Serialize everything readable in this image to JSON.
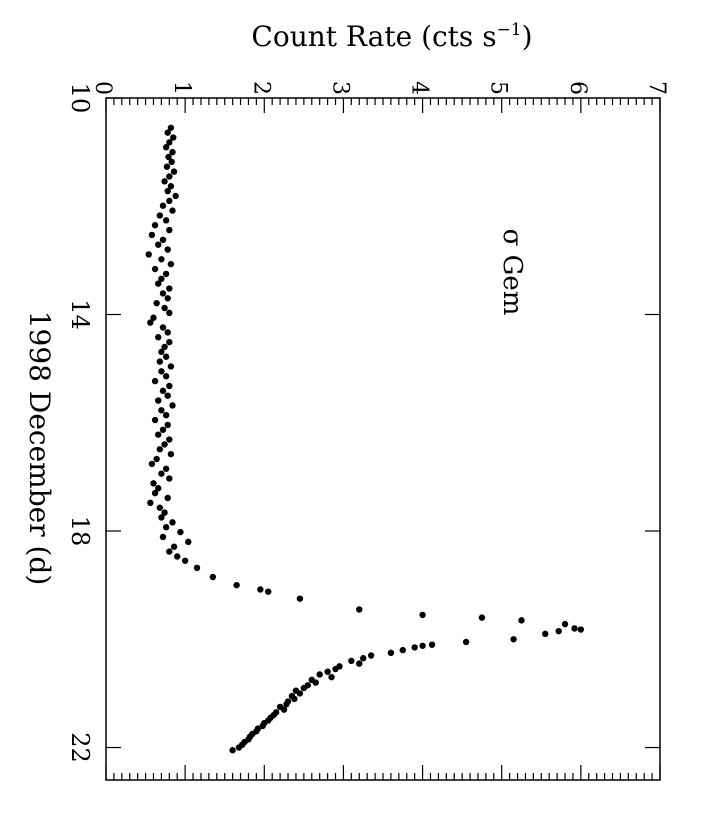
{
  "chart_data": {
    "type": "scatter",
    "orientation": "rotated-90-clockwise",
    "annotation": "σ Gem",
    "xlabel": "1998 December (d)",
    "ylabel_main": "Count Rate (cts s",
    "ylabel_sup": "−1",
    "ylabel_close": ")",
    "xlim": [
      10,
      22.6
    ],
    "ylim": [
      0,
      7
    ],
    "x_ticks": [
      10,
      14,
      18,
      22
    ],
    "x_tick_labels": [
      "10",
      "14",
      "18",
      "22"
    ],
    "y_ticks": [
      0,
      1,
      2,
      3,
      4,
      5,
      6,
      7
    ],
    "y_tick_labels": [
      "0",
      "1",
      "2",
      "3",
      "4",
      "5",
      "6",
      "7"
    ],
    "grid": false,
    "legend": "none",
    "marker_color": "#000000",
    "series": [
      {
        "x": [
          10.55,
          10.64,
          10.73,
          10.82,
          10.91,
          11.0,
          11.09,
          11.18,
          11.27,
          11.36,
          11.45,
          11.54,
          11.63,
          11.72,
          11.81,
          11.9,
          11.99,
          12.08,
          12.17,
          12.26,
          12.35,
          12.44,
          12.53,
          12.62,
          12.71,
          12.8,
          12.89,
          12.98,
          13.07,
          13.16,
          13.25,
          13.34,
          13.43,
          13.52,
          13.61,
          13.7,
          13.79,
          13.88,
          13.97,
          14.06,
          14.15,
          14.24,
          14.33,
          14.42,
          14.51,
          14.6,
          14.69,
          14.78,
          14.87,
          14.96,
          15.05,
          15.14,
          15.23,
          15.32,
          15.41,
          15.5,
          15.59,
          15.68,
          15.77,
          15.86,
          15.95,
          16.04,
          16.13,
          16.22,
          16.31,
          16.4,
          16.49,
          16.58,
          16.67,
          16.76,
          16.85,
          16.94,
          17.03,
          17.12,
          17.21,
          17.3,
          17.39,
          17.48,
          17.57,
          17.66,
          17.75,
          17.84,
          17.93,
          18.02,
          18.11,
          18.2,
          18.29,
          18.38,
          18.47,
          18.55,
          18.68,
          18.85,
          19.0,
          19.08,
          19.12,
          19.25,
          19.45,
          19.55,
          19.6,
          19.65,
          19.72,
          19.8,
          19.82,
          19.85,
          19.9,
          20.0,
          20.05,
          20.1,
          20.12,
          20.15,
          20.2,
          20.25,
          20.3,
          20.35,
          20.4,
          20.45,
          20.5,
          20.55,
          20.6,
          20.65,
          20.7,
          20.75,
          20.8,
          20.85,
          20.9,
          20.95,
          21.0,
          21.05,
          21.1,
          21.15,
          21.2,
          21.25,
          21.3,
          21.35,
          21.4,
          21.45,
          21.5,
          21.55,
          21.6,
          21.65,
          21.7,
          21.75,
          21.8,
          21.85,
          21.9,
          21.95,
          22.0,
          22.05
        ],
        "y": [
          0.82,
          0.78,
          0.85,
          0.8,
          0.76,
          0.84,
          0.79,
          0.83,
          0.77,
          0.86,
          0.8,
          0.74,
          0.82,
          0.78,
          0.88,
          0.8,
          0.72,
          0.84,
          0.68,
          0.76,
          0.62,
          0.8,
          0.58,
          0.72,
          0.66,
          0.78,
          0.54,
          0.7,
          0.82,
          0.62,
          0.76,
          0.7,
          0.66,
          0.8,
          0.72,
          0.78,
          0.64,
          0.74,
          0.8,
          0.6,
          0.56,
          0.72,
          0.78,
          0.66,
          0.8,
          0.74,
          0.7,
          0.76,
          0.68,
          0.82,
          0.7,
          0.76,
          0.62,
          0.8,
          0.72,
          0.78,
          0.66,
          0.84,
          0.7,
          0.76,
          0.62,
          0.78,
          0.72,
          0.66,
          0.8,
          0.74,
          0.68,
          0.82,
          0.64,
          0.58,
          0.76,
          0.7,
          0.8,
          0.6,
          0.66,
          0.62,
          0.78,
          0.56,
          0.68,
          0.74,
          0.7,
          0.84,
          0.76,
          0.94,
          0.72,
          1.04,
          0.86,
          0.8,
          0.9,
          1.0,
          1.15,
          1.35,
          1.65,
          1.95,
          2.05,
          2.45,
          3.2,
          4.0,
          4.75,
          5.25,
          5.8,
          5.92,
          6.0,
          5.72,
          5.55,
          5.15,
          4.55,
          4.12,
          4.0,
          3.9,
          3.75,
          3.6,
          3.35,
          3.25,
          3.1,
          3.2,
          2.95,
          2.9,
          2.8,
          2.7,
          2.85,
          2.6,
          2.65,
          2.55,
          2.5,
          2.4,
          2.45,
          2.35,
          2.38,
          2.3,
          2.28,
          2.2,
          2.25,
          2.15,
          2.12,
          2.08,
          2.05,
          2.0,
          1.98,
          1.92,
          1.9,
          1.85,
          1.82,
          1.8,
          1.75,
          1.72,
          1.68,
          1.6
        ]
      }
    ]
  }
}
